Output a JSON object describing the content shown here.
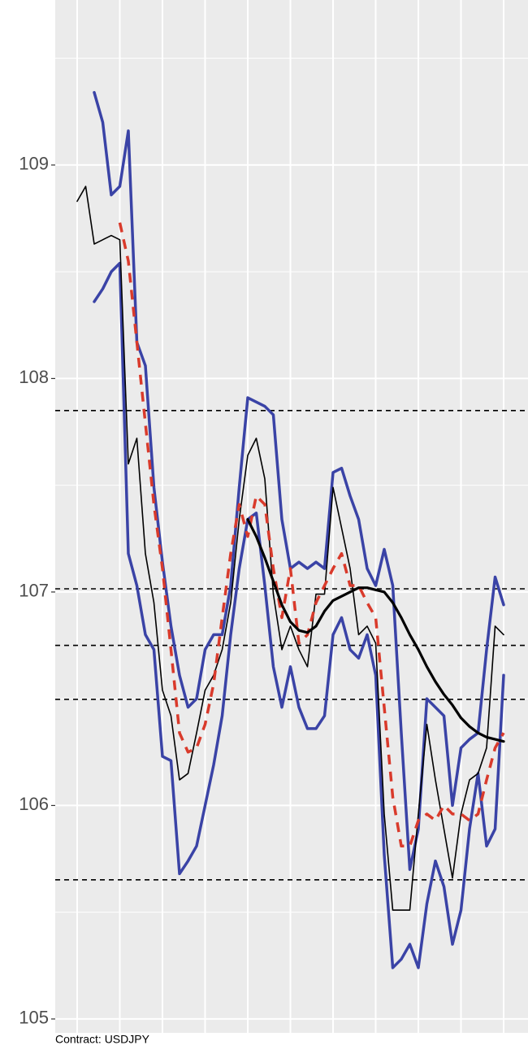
{
  "chart_data": {
    "type": "line",
    "caption": "Contract: USDJPY",
    "x": [
      0,
      2,
      4,
      6,
      8,
      10,
      12,
      14,
      16,
      18,
      20,
      22,
      24,
      26,
      28,
      30,
      32,
      34,
      36,
      38,
      40,
      42,
      44,
      46,
      48,
      50,
      52,
      54,
      56,
      58,
      60,
      62,
      64,
      66,
      68,
      70,
      72,
      74,
      76,
      78,
      80,
      82,
      84,
      86,
      88,
      90,
      92,
      94,
      96,
      98,
      100
    ],
    "xlim": [
      -5.14,
      105.71
    ],
    "xticks": [
      0,
      10,
      20,
      30,
      40,
      50,
      60,
      70,
      80,
      90,
      100
    ],
    "ylim": [
      104.935,
      109.773
    ],
    "yticks": [
      105,
      106,
      107,
      108,
      109
    ],
    "y_minor_ticks": [
      105.5,
      106.5,
      107.5,
      108.5,
      109.5
    ],
    "grid": true,
    "background": "#ebebeb",
    "hlines": [
      107.85,
      107.015,
      106.75,
      106.497,
      105.652
    ],
    "hline_color": "#000000",
    "series": [
      {
        "color": "#3a43a6",
        "width": 3.5,
        "dash": false,
        "values": [
          null,
          null,
          109.34,
          109.2,
          108.86,
          108.9,
          109.16,
          108.17,
          108.06,
          107.49,
          107.14,
          106.84,
          106.61,
          106.46,
          106.5,
          106.73,
          106.8,
          106.8,
          107.03,
          107.49,
          107.91,
          107.89,
          107.87,
          107.83,
          107.34,
          107.11,
          107.14,
          107.11,
          107.14,
          107.11,
          107.56,
          107.58,
          107.45,
          107.34,
          107.11,
          107.03,
          107.2,
          107.03,
          106.34,
          105.7,
          105.89,
          106.5,
          106.46,
          106.42,
          106.0,
          106.27,
          106.31,
          106.34,
          106.73,
          107.07,
          106.94
        ]
      },
      {
        "color": "#3a43a6",
        "width": 3.5,
        "dash": false,
        "values": [
          null,
          null,
          108.36,
          108.42,
          108.5,
          108.54,
          107.18,
          107.03,
          106.8,
          106.73,
          106.23,
          106.21,
          105.68,
          105.74,
          105.81,
          106.0,
          106.19,
          106.42,
          106.8,
          107.11,
          107.34,
          107.37,
          107.03,
          106.65,
          106.46,
          106.65,
          106.46,
          106.36,
          106.36,
          106.42,
          106.8,
          106.88,
          106.73,
          106.69,
          106.8,
          106.61,
          105.77,
          105.24,
          105.28,
          105.35,
          105.24,
          105.54,
          105.74,
          105.62,
          105.35,
          105.51,
          105.89,
          106.15,
          105.81,
          105.89,
          106.61
        ]
      },
      {
        "color": "#000000",
        "width": 1.6,
        "dash": false,
        "values": [
          108.83,
          108.9,
          108.63,
          108.65,
          108.67,
          108.65,
          107.6,
          107.72,
          107.18,
          106.95,
          106.54,
          106.42,
          106.12,
          106.15,
          106.34,
          106.54,
          106.61,
          106.73,
          106.95,
          107.34,
          107.64,
          107.72,
          107.53,
          106.99,
          106.73,
          106.84,
          106.73,
          106.65,
          106.99,
          106.99,
          107.49,
          107.3,
          107.11,
          106.8,
          106.84,
          106.76,
          105.96,
          105.51,
          105.51,
          105.51,
          105.96,
          106.38,
          106.12,
          105.89,
          105.66,
          105.96,
          106.12,
          106.15,
          106.27,
          106.84,
          106.8
        ]
      },
      {
        "color": "#d93a2b",
        "width": 3.5,
        "dash": true,
        "values": [
          null,
          null,
          null,
          null,
          null,
          108.73,
          108.55,
          108.17,
          107.79,
          107.41,
          107.11,
          106.73,
          106.34,
          106.25,
          106.27,
          106.38,
          106.57,
          106.88,
          107.18,
          107.41,
          107.26,
          107.45,
          107.41,
          107.11,
          106.88,
          107.11,
          106.76,
          106.8,
          106.95,
          107.03,
          107.11,
          107.18,
          107.03,
          107.03,
          106.95,
          106.88,
          106.46,
          106.04,
          105.81,
          105.81,
          105.93,
          105.96,
          105.93,
          106.0,
          105.96,
          105.96,
          105.93,
          105.96,
          106.12,
          106.27,
          106.34
        ]
      },
      {
        "color": "#000000",
        "width": 3.2,
        "dash": false,
        "values": [
          null,
          null,
          null,
          null,
          null,
          null,
          null,
          null,
          null,
          null,
          null,
          null,
          null,
          null,
          null,
          null,
          null,
          null,
          null,
          null,
          107.34,
          107.26,
          107.16,
          107.05,
          106.94,
          106.86,
          106.82,
          106.81,
          106.84,
          106.91,
          106.96,
          106.98,
          107.0,
          107.02,
          107.02,
          107.01,
          107.0,
          106.95,
          106.88,
          106.8,
          106.73,
          106.65,
          106.58,
          106.52,
          106.47,
          106.41,
          106.37,
          106.34,
          106.32,
          106.31,
          106.3
        ]
      }
    ]
  }
}
